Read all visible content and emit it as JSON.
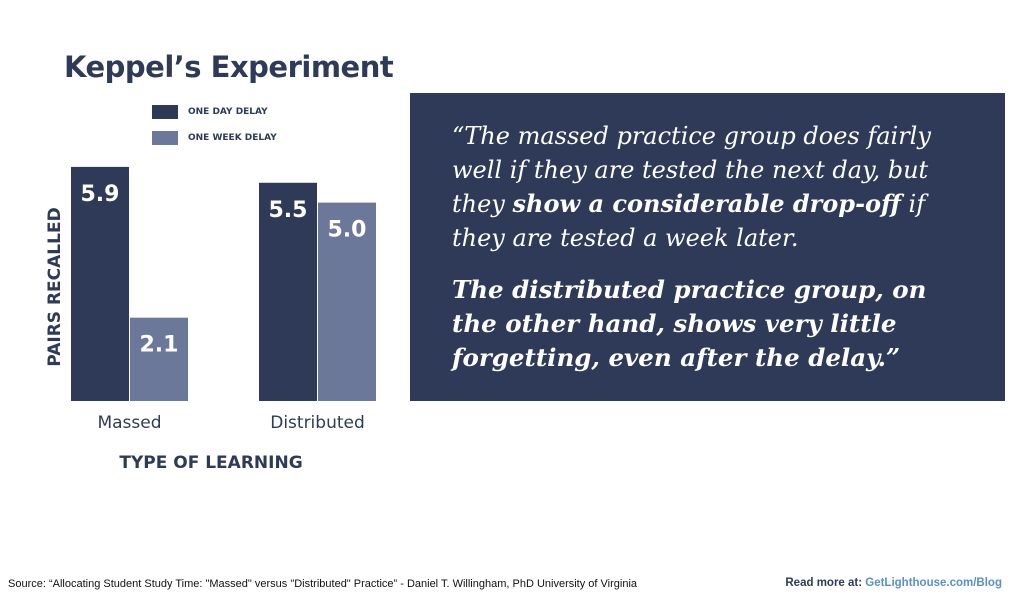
{
  "colors": {
    "one_day": "#2e3a57",
    "one_week": "#6c7899",
    "quote_bg": "#2e3a57",
    "link": "#5b8fc7"
  },
  "chart_data": {
    "type": "bar",
    "title": "Keppel’s Experiment",
    "xlabel": "TYPE OF LEARNING",
    "ylabel": "PAIRS RECALLED",
    "categories": [
      "Massed",
      "Distributed"
    ],
    "series": [
      {
        "name": "ONE DAY DELAY",
        "values": [
          5.9,
          5.5
        ]
      },
      {
        "name": "ONE WEEK DELAY",
        "values": [
          2.1,
          5.0
        ]
      }
    ],
    "value_labels": [
      [
        "5.9",
        "5.5"
      ],
      [
        "2.1",
        "5.0"
      ]
    ],
    "ylim": [
      0,
      6.2
    ],
    "grid": false,
    "legend_position": "top-left"
  },
  "quote": {
    "p1_before": "“The massed practice group does fairly well if they are tested the next day, but they ",
    "p1_strong": "show a considerable drop-off",
    "p1_after": " if they are tested a week later.",
    "p2": "The distributed practice group, on the other hand, shows very little forgetting, even after the delay.”"
  },
  "footer": {
    "source": "Source: “Allocating Student Study Time: \"Massed\" versus \"Distributed\" Practice” - Daniel T. Willingham, PhD University of Virginia",
    "read_more_prefix": "Read more at: ",
    "read_more_link": "GetLighthouse.com/Blog"
  }
}
